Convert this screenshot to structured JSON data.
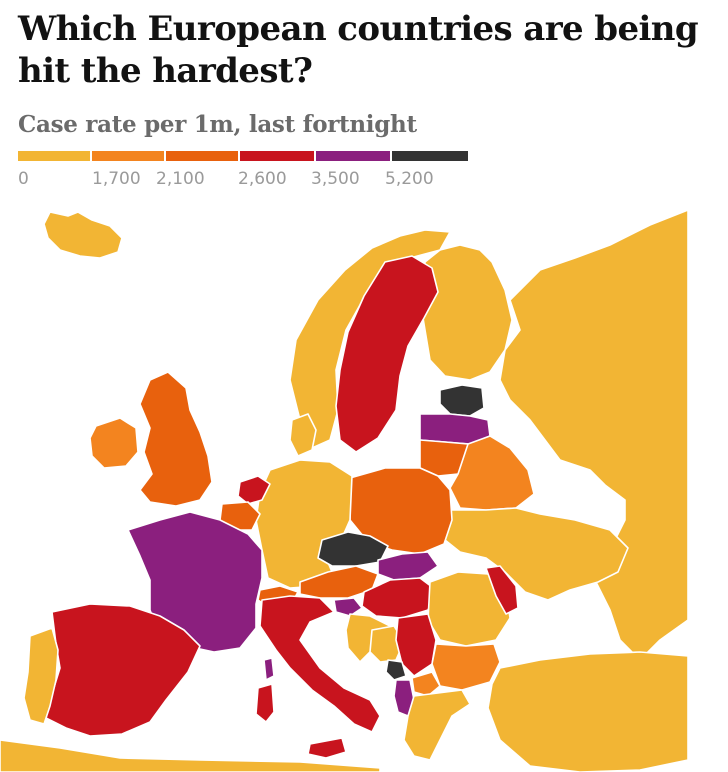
{
  "header": {
    "title": "Which European countries are being hit the hardest?",
    "subtitle": "Case rate per 1m, last fortnight"
  },
  "legend": {
    "ticks": [
      "0",
      "1,700",
      "2,100",
      "2,600",
      "3,500",
      "5,200"
    ],
    "bins": [
      {
        "from": 0,
        "to": 1700,
        "color": "#f2b534"
      },
      {
        "from": 1700,
        "to": 2100,
        "color": "#f3841f"
      },
      {
        "from": 2100,
        "to": 2600,
        "color": "#e8610d"
      },
      {
        "from": 2600,
        "to": 3500,
        "color": "#c8141e"
      },
      {
        "from": 3500,
        "to": 5200,
        "color": "#8b1f7e"
      },
      {
        "from": 5200,
        "to": null,
        "color": "#333333"
      }
    ]
  },
  "map": {
    "sea_color": "#ffffff",
    "border_color": "#ffffff"
  }
}
